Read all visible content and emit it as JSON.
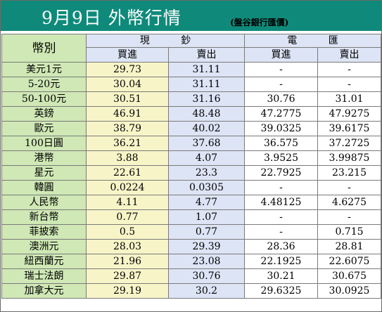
{
  "header": {
    "title": "9月9日 外幣行情",
    "subtitle": "(盤谷銀行匯價)"
  },
  "table": {
    "currency_header": "幣別",
    "groups": [
      "現 鈔",
      "電 匯"
    ],
    "subheaders": [
      "買進",
      "賣出",
      "買進",
      "賣出"
    ],
    "rows": [
      {
        "name": "美元1元",
        "values": [
          "29.73",
          "31.11",
          "-",
          "-"
        ]
      },
      {
        "name": "5-20元",
        "values": [
          "30.04",
          "31.11",
          "-",
          "-"
        ]
      },
      {
        "name": "50-100元",
        "values": [
          "30.51",
          "31.16",
          "30.76",
          "31.01"
        ]
      },
      {
        "name": "英鎊",
        "values": [
          "46.91",
          "48.48",
          "47.2775",
          "47.9275"
        ]
      },
      {
        "name": "歐元",
        "values": [
          "38.79",
          "40.02",
          "39.0325",
          "39.6175"
        ]
      },
      {
        "name": "100日圓",
        "values": [
          "36.21",
          "37.68",
          "36.575",
          "37.2725"
        ]
      },
      {
        "name": "港幣",
        "values": [
          "3.88",
          "4.07",
          "3.9525",
          "3.99875"
        ]
      },
      {
        "name": "星元",
        "values": [
          "22.61",
          "23.3",
          "22.7925",
          "23.215"
        ]
      },
      {
        "name": "韓圓",
        "values": [
          "0.0224",
          "0.0305",
          "-",
          "-"
        ]
      },
      {
        "name": "人民幣",
        "values": [
          "4.11",
          "4.77",
          "4.48125",
          "4.6275"
        ]
      },
      {
        "name": "新台幣",
        "values": [
          "0.77",
          "1.07",
          "-",
          "-"
        ]
      },
      {
        "name": "菲披索",
        "values": [
          "0.5",
          "0.77",
          "-",
          "0.715"
        ]
      },
      {
        "name": "澳洲元",
        "values": [
          "28.03",
          "29.39",
          "28.36",
          "28.81"
        ]
      },
      {
        "name": "紐西蘭元",
        "values": [
          "21.96",
          "23.08",
          "22.1925",
          "22.6075"
        ]
      },
      {
        "name": "瑞士法朗",
        "values": [
          "29.87",
          "30.76",
          "30.21",
          "30.675"
        ]
      },
      {
        "name": "加拿大元",
        "values": [
          "29.19",
          "30.2",
          "29.6325",
          "30.0925"
        ]
      }
    ]
  }
}
